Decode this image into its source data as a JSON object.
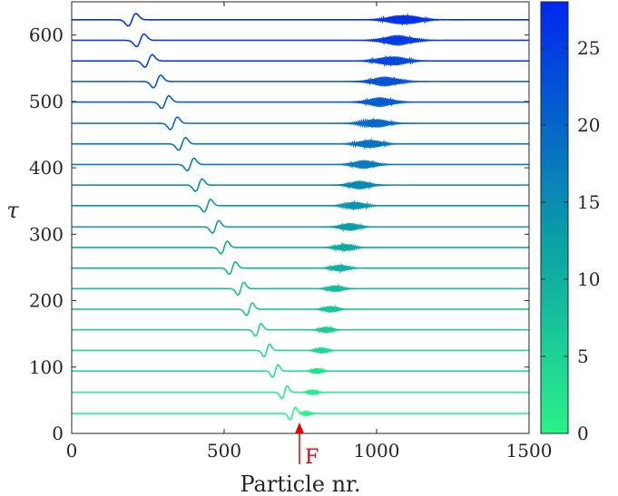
{
  "chart_data": {
    "type": "line",
    "title": "",
    "xlabel": "Particle nr.",
    "ylabel": "τ",
    "xlim": [
      0,
      1500
    ],
    "ylim": [
      0,
      650
    ],
    "x_ticks": [
      "0",
      "500",
      "1000",
      "1500"
    ],
    "y_ticks": [
      "0",
      "100",
      "200",
      "300",
      "400",
      "500",
      "600"
    ],
    "grid": false,
    "colorbar": {
      "range": [
        0,
        28
      ],
      "ticks": [
        "0",
        "5",
        "10",
        "15",
        "20",
        "25"
      ],
      "colormap": [
        "#2af28a",
        "#0a9fa6",
        "#0026f0"
      ]
    },
    "annotation": {
      "text": "F",
      "x": 755,
      "color": "#e00000"
    },
    "series_description": "Stacked traces, one per time step; each trace shows a solitary wave (left) and a wave packet (right)",
    "series": [
      {
        "tau": 30,
        "color_value": 0,
        "pulse_x": 725,
        "packet_x": 770
      },
      {
        "tau": 62,
        "color_value": 1.4,
        "pulse_x": 698,
        "packet_x": 790
      },
      {
        "tau": 94,
        "color_value": 2.8,
        "pulse_x": 668,
        "packet_x": 805
      },
      {
        "tau": 125,
        "color_value": 4.2,
        "pulse_x": 640,
        "packet_x": 820
      },
      {
        "tau": 156,
        "color_value": 5.6,
        "pulse_x": 612,
        "packet_x": 835
      },
      {
        "tau": 187,
        "color_value": 7.0,
        "pulse_x": 583,
        "packet_x": 850
      },
      {
        "tau": 218,
        "color_value": 8.4,
        "pulse_x": 555,
        "packet_x": 865
      },
      {
        "tau": 249,
        "color_value": 9.8,
        "pulse_x": 527,
        "packet_x": 880
      },
      {
        "tau": 280,
        "color_value": 11.2,
        "pulse_x": 500,
        "packet_x": 895
      },
      {
        "tau": 311,
        "color_value": 12.6,
        "pulse_x": 472,
        "packet_x": 912
      },
      {
        "tau": 343,
        "color_value": 14.0,
        "pulse_x": 445,
        "packet_x": 928
      },
      {
        "tau": 374,
        "color_value": 15.4,
        "pulse_x": 417,
        "packet_x": 945
      },
      {
        "tau": 405,
        "color_value": 16.8,
        "pulse_x": 390,
        "packet_x": 960
      },
      {
        "tau": 436,
        "color_value": 18.2,
        "pulse_x": 362,
        "packet_x": 977
      },
      {
        "tau": 467,
        "color_value": 19.6,
        "pulse_x": 335,
        "packet_x": 995
      },
      {
        "tau": 499,
        "color_value": 21.0,
        "pulse_x": 307,
        "packet_x": 1012
      },
      {
        "tau": 530,
        "color_value": 22.4,
        "pulse_x": 280,
        "packet_x": 1030
      },
      {
        "tau": 561,
        "color_value": 23.8,
        "pulse_x": 252,
        "packet_x": 1050
      },
      {
        "tau": 592,
        "color_value": 25.2,
        "pulse_x": 225,
        "packet_x": 1070
      },
      {
        "tau": 623,
        "color_value": 26.6,
        "pulse_x": 198,
        "packet_x": 1090
      }
    ]
  }
}
